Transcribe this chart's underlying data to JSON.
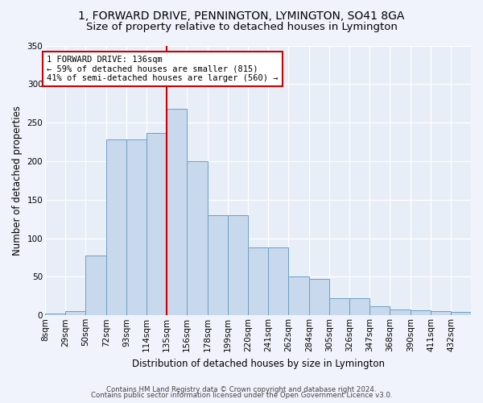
{
  "title_line1": "1, FORWARD DRIVE, PENNINGTON, LYMINGTON, SO41 8GA",
  "title_line2": "Size of property relative to detached houses in Lymington",
  "xlabel": "Distribution of detached houses by size in Lymington",
  "ylabel": "Number of detached properties",
  "bar_color": "#c9d9ed",
  "bar_edge_color": "#6a9fc0",
  "background_color": "#e8eef8",
  "fig_background": "#f0f3fb",
  "grid_color": "#ffffff",
  "vline_x": 135,
  "vline_color": "#cc0000",
  "annotation_text": "1 FORWARD DRIVE: 136sqm\n← 59% of detached houses are smaller (815)\n41% of semi-detached houses are larger (560) →",
  "annotation_box_color": "#ffffff",
  "annotation_border_color": "#cc0000",
  "footer_line1": "Contains HM Land Registry data © Crown copyright and database right 2024.",
  "footer_line2": "Contains public sector information licensed under the Open Government Licence v3.0.",
  "bin_edges": [
    8,
    29,
    50,
    72,
    93,
    114,
    135,
    156,
    178,
    199,
    220,
    241,
    262,
    284,
    305,
    326,
    347,
    368,
    390,
    411,
    432,
    453
  ],
  "bar_heights": [
    2,
    6,
    78,
    228,
    228,
    237,
    268,
    200,
    130,
    130,
    88,
    88,
    50,
    47,
    22,
    22,
    12,
    8,
    7,
    5,
    4
  ],
  "ylim": [
    0,
    350
  ],
  "yticks": [
    0,
    50,
    100,
    150,
    200,
    250,
    300,
    350
  ],
  "title_fontsize": 10,
  "subtitle_fontsize": 9.5,
  "tick_fontsize": 7.5,
  "xlabel_fontsize": 8.5,
  "ylabel_fontsize": 8.5,
  "annotation_fontsize": 7.5
}
